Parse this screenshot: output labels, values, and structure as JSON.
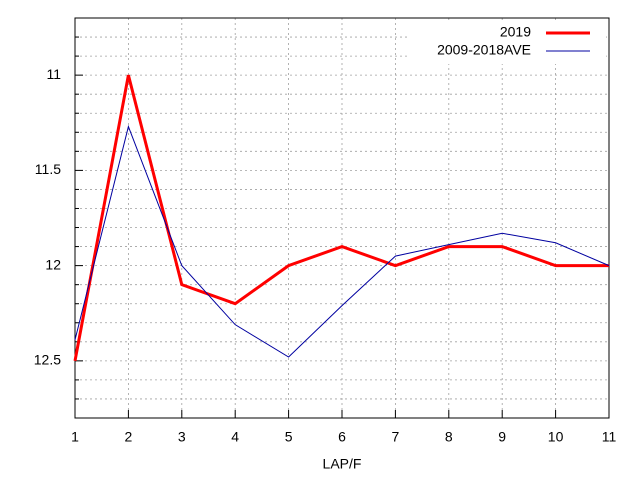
{
  "chart_data": {
    "type": "line",
    "xlabel": "LAP/F",
    "x": [
      1,
      2,
      3,
      4,
      5,
      6,
      7,
      8,
      9,
      10,
      11
    ],
    "series": [
      {
        "name": "2019",
        "color": "#ff0000",
        "values": [
          12.5,
          11,
          12.1,
          12.2,
          12,
          11.9,
          12,
          11.9,
          11.9,
          12,
          12
        ]
      },
      {
        "name": "2009-2018AVE",
        "color": "#0000a0",
        "values": [
          12.39,
          11.27,
          12.0,
          12.31,
          12.48,
          12.21,
          11.95,
          11.89,
          11.83,
          11.88,
          12.0
        ]
      }
    ],
    "xlim": [
      1,
      11
    ],
    "xticks": [
      1,
      2,
      3,
      4,
      5,
      6,
      7,
      8,
      9,
      10,
      11
    ],
    "ylim": [
      12.8,
      10.7
    ],
    "yticks": [
      11,
      11.5,
      12,
      12.5
    ],
    "yminorticks": [
      10.8,
      10.9,
      11.1,
      11.2,
      11.3,
      11.4,
      11.6,
      11.7,
      11.8,
      11.9,
      12.1,
      12.2,
      12.3,
      12.4,
      12.6,
      12.7
    ],
    "grid": true,
    "legend": "top-right"
  }
}
